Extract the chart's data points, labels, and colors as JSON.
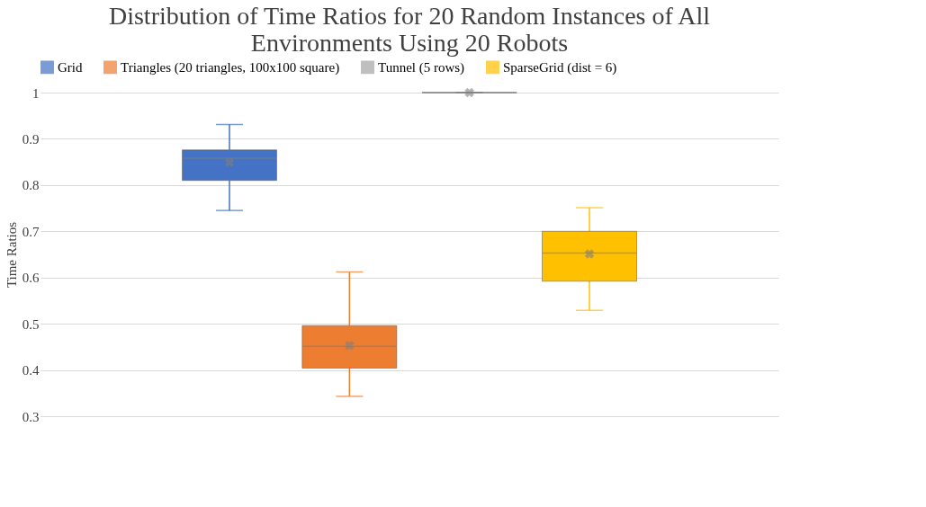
{
  "chart_data": {
    "type": "box",
    "title": "Distribution of Time Ratios for 20 Random Instances of All Environments Using 20 Robots",
    "ylabel": "Time Ratios",
    "categories": [
      null
    ],
    "series": [
      {
        "name": "Grid",
        "color": "#4472c4",
        "boxes": [
          {
            "low": 0.745,
            "q1": 0.81,
            "median": 0.858,
            "q3": 0.876,
            "high": 0.931,
            "mean": 0.849
          }
        ]
      },
      {
        "name": "Triangles (20 triangles, 100x100 square)",
        "color": "#ed7d31",
        "boxes": [
          {
            "low": 0.343,
            "q1": 0.404,
            "median": 0.451,
            "q3": 0.496,
            "high": 0.612,
            "mean": 0.453
          }
        ]
      },
      {
        "name": "Tunnel (5 rows)",
        "color": "#a5a5a5",
        "boxes": [
          {
            "low": 1,
            "q1": 1,
            "median": 1,
            "q3": 1,
            "high": 1,
            "mean": 1
          }
        ]
      },
      {
        "name": "SparseGrid (dist = 6)",
        "color": "#ffc000",
        "boxes": [
          {
            "low": 0.529,
            "q1": 0.592,
            "median": 0.653,
            "q3": 0.7,
            "high": 0.751,
            "mean": 0.651
          }
        ]
      }
    ],
    "ylim": [
      0.3,
      1
    ],
    "yticks": [
      0.3,
      0.4,
      0.5,
      0.6,
      0.7,
      0.8,
      0.9,
      1
    ],
    "grid": "y",
    "legend": "top"
  }
}
